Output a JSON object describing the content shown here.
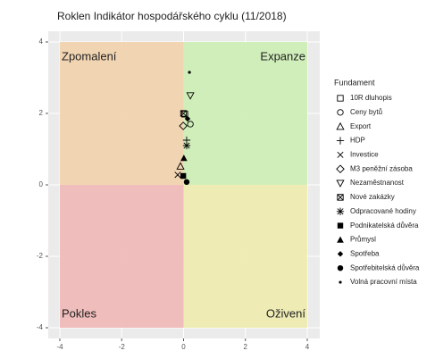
{
  "chart_data": {
    "type": "scatter",
    "title": "Roklen Indikátor hospodářského cyklu (11/2018)",
    "legend_title": "Fundament",
    "xlim": [
      -4,
      4
    ],
    "ylim": [
      -4,
      4
    ],
    "xticks": [
      -4,
      -2,
      0,
      2,
      4
    ],
    "yticks": [
      -4,
      -2,
      0,
      2,
      4
    ],
    "grid": true,
    "quadrants": [
      {
        "label": "Zpomalení",
        "color": "#f2d2ac"
      },
      {
        "label": "Expanze",
        "color": "#cdeeb5"
      },
      {
        "label": "Pokles",
        "color": "#f0b8b6"
      },
      {
        "label": "Oživení",
        "color": "#eeecae"
      }
    ],
    "series": [
      {
        "name": "10R dluhopis",
        "shape": "square-open",
        "color": "#000000",
        "x": [
          0.04
        ],
        "values": [
          1.98
        ]
      },
      {
        "name": "Ceny bytů",
        "shape": "circle-open",
        "color": "#000000",
        "x": [
          0.22
        ],
        "values": [
          1.7
        ]
      },
      {
        "name": "Export",
        "shape": "triangle-open",
        "color": "#000000",
        "x": [
          -0.1
        ],
        "values": [
          0.52
        ]
      },
      {
        "name": "HDP",
        "shape": "plus",
        "color": "#000000",
        "x": [
          0.1
        ],
        "values": [
          1.25
        ]
      },
      {
        "name": "Investice",
        "shape": "cross",
        "color": "#000000",
        "x": [
          -0.19
        ],
        "values": [
          0.28
        ]
      },
      {
        "name": "M3 peněžní zásoba",
        "shape": "diamond-open",
        "color": "#000000",
        "x": [
          -0.01
        ],
        "values": [
          1.65
        ]
      },
      {
        "name": "Nezaměstnanost",
        "shape": "triangle-down-open",
        "color": "#000000",
        "x": [
          0.22
        ],
        "values": [
          2.5
        ]
      },
      {
        "name": "Nové zakázky",
        "shape": "square-cross",
        "color": "#000000",
        "x": [
          0.0
        ],
        "values": [
          2.0
        ]
      },
      {
        "name": "Odpracované hodiny",
        "shape": "asterisk",
        "color": "#000000",
        "x": [
          0.1
        ],
        "values": [
          1.1
        ]
      },
      {
        "name": "Podnikatelská důvěra",
        "shape": "square",
        "color": "#000000",
        "x": [
          -0.01
        ],
        "values": [
          0.25
        ]
      },
      {
        "name": "Průmysl",
        "shape": "triangle",
        "color": "#000000",
        "x": [
          0.01
        ],
        "values": [
          0.75
        ]
      },
      {
        "name": "Spotřeba",
        "shape": "diamond",
        "color": "#000000",
        "x": [
          0.13
        ],
        "values": [
          1.85
        ]
      },
      {
        "name": "Spotřebitelská důvěra",
        "shape": "circle",
        "color": "#000000",
        "x": [
          0.1
        ],
        "values": [
          0.08
        ]
      },
      {
        "name": "Volná pracovní místa",
        "shape": "dot",
        "color": "#000000",
        "x": [
          0.19
        ],
        "values": [
          3.15
        ]
      }
    ]
  }
}
